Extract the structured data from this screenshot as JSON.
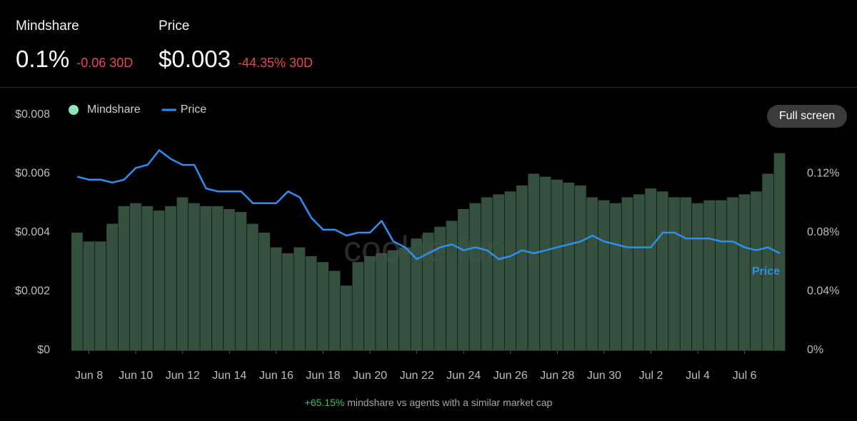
{
  "header": {
    "mindshare": {
      "label": "Mindshare",
      "value": "0.1%",
      "change": "-0.06 30D"
    },
    "price": {
      "label": "Price",
      "value": "$0.003",
      "change": "-44.35% 30D"
    }
  },
  "button": "Full screen",
  "watermark": "cookie.fun",
  "footer": {
    "highlight": "+65.15%",
    "text": "mindshare vs agents with a similar market cap"
  },
  "chart_data": {
    "type": "combo",
    "categories": [
      null,
      "Jun 8",
      null,
      null,
      null,
      "Jun 10",
      null,
      null,
      null,
      "Jun 12",
      null,
      null,
      null,
      "Jun 14",
      null,
      null,
      null,
      "Jun 16",
      null,
      null,
      null,
      "Jun 18",
      null,
      null,
      null,
      "Jun 20",
      null,
      null,
      null,
      "Jun 22",
      null,
      null,
      null,
      "Jun 24",
      null,
      null,
      null,
      "Jun 26",
      null,
      null,
      null,
      "Jun 28",
      null,
      null,
      null,
      "Jun 30",
      null,
      null,
      null,
      "Jul 2",
      null,
      null,
      null,
      "Jul 4",
      null,
      null,
      null,
      "Jul 6",
      null,
      null,
      null
    ],
    "series": [
      {
        "name": "Mindshare",
        "color": "#3b5a45",
        "legend_color": "#8ee6b8",
        "axis": "y2",
        "kind": "bar",
        "values": [
          0.08,
          0.074,
          0.074,
          0.086,
          0.098,
          0.1,
          0.098,
          0.095,
          0.098,
          0.104,
          0.1,
          0.098,
          0.098,
          0.096,
          0.094,
          0.086,
          0.08,
          0.07,
          0.066,
          0.07,
          0.064,
          0.06,
          0.054,
          0.044,
          0.06,
          0.064,
          0.066,
          0.068,
          0.07,
          0.076,
          0.08,
          0.084,
          0.088,
          0.096,
          0.1,
          0.104,
          0.106,
          0.108,
          0.112,
          0.12,
          0.118,
          0.116,
          0.114,
          0.112,
          0.104,
          0.102,
          0.1,
          0.104,
          0.106,
          0.11,
          0.108,
          0.104,
          0.104,
          0.1,
          0.102,
          0.102,
          0.104,
          0.106,
          0.108,
          0.12,
          0.134
        ]
      },
      {
        "name": "Price",
        "color": "#2f8ff0",
        "axis": "y",
        "kind": "line",
        "values": [
          0.0059,
          0.0058,
          0.0058,
          0.0057,
          0.0058,
          0.0062,
          0.0063,
          0.0068,
          0.0065,
          0.0063,
          0.0063,
          0.0055,
          0.0054,
          0.0054,
          0.0054,
          0.005,
          0.005,
          0.005,
          0.0054,
          0.0052,
          0.0045,
          0.0041,
          0.0041,
          0.0039,
          0.004,
          0.004,
          0.0044,
          0.0037,
          0.0035,
          0.0031,
          0.0033,
          0.0035,
          0.0036,
          0.0034,
          0.0035,
          0.0034,
          0.0031,
          0.0032,
          0.0034,
          0.0033,
          0.0034,
          0.0035,
          0.0036,
          0.0037,
          0.0039,
          0.0037,
          0.0036,
          0.0035,
          0.0035,
          0.0035,
          0.004,
          0.004,
          0.0038,
          0.0038,
          0.0038,
          0.0037,
          0.0037,
          0.0035,
          0.0034,
          0.0035,
          0.0033
        ]
      }
    ],
    "annotation": "Price",
    "ylim": [
      0,
      0.008
    ],
    "yticks": [
      {
        "value": 0,
        "label": "$0"
      },
      {
        "value": 0.002,
        "label": "$0.002"
      },
      {
        "value": 0.004,
        "label": "$0.004"
      },
      {
        "value": 0.006,
        "label": "$0.006"
      },
      {
        "value": 0.008,
        "label": "$0.008"
      }
    ],
    "y2lim": [
      0,
      0.16
    ],
    "y2ticks": [
      {
        "value": 0,
        "label": "0%"
      },
      {
        "value": 0.04,
        "label": "0.04%"
      },
      {
        "value": 0.08,
        "label": "0.08%"
      },
      {
        "value": 0.12,
        "label": "0.12%"
      }
    ],
    "legend": "top-left"
  }
}
